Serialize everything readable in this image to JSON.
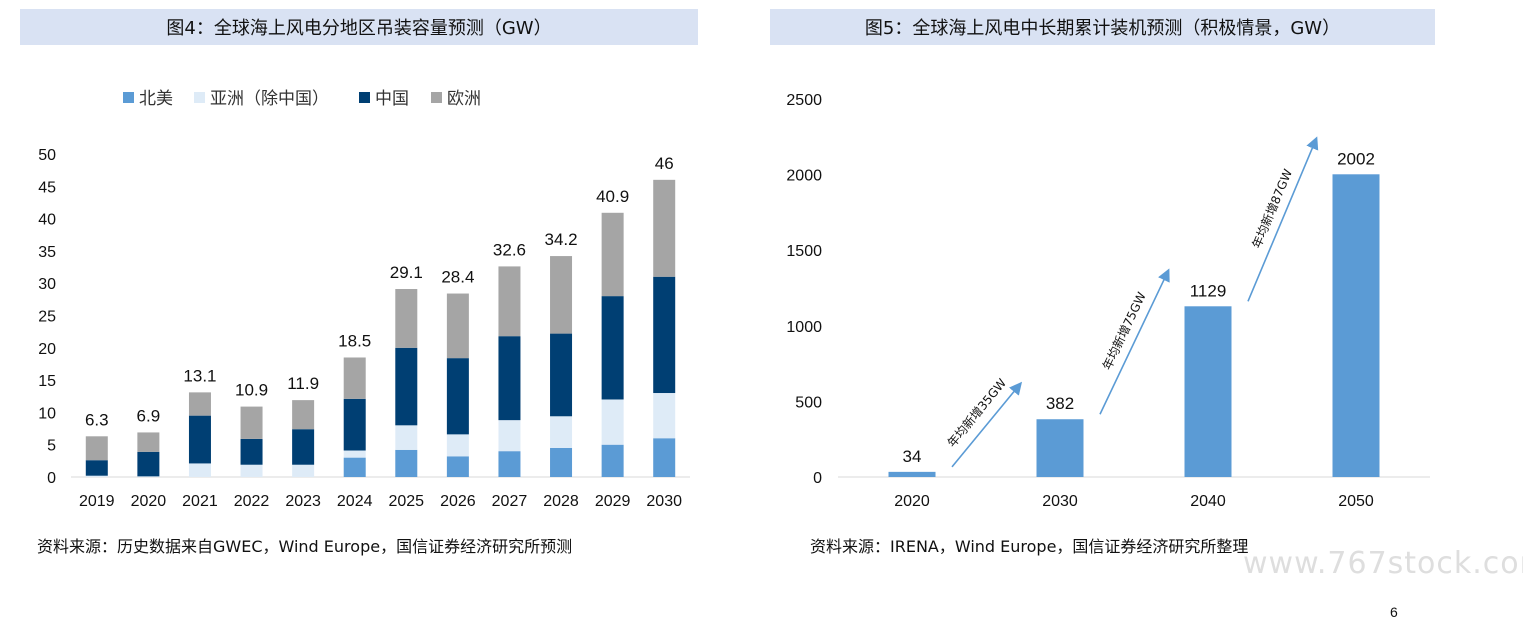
{
  "left_chart": {
    "title": "图4：全球海上风电分地区吊装容量预测（GW）",
    "source": "资料来源：历史数据来自GWEC，Wind Europe，国信证券经济研究所预测",
    "chart_data": {
      "type": "bar",
      "stacked": true,
      "title": "图4：全球海上风电分地区吊装容量预测（GW）",
      "categories": [
        "2019",
        "2020",
        "2021",
        "2022",
        "2023",
        "2024",
        "2025",
        "2026",
        "2027",
        "2028",
        "2029",
        "2030"
      ],
      "series": [
        {
          "name": "北美",
          "color": "#5b9bd5",
          "values": [
            0,
            0,
            0,
            0,
            0,
            3.0,
            4.2,
            3.2,
            4.0,
            4.5,
            5.0,
            6.0
          ]
        },
        {
          "name": "亚洲（除中国）",
          "color": "#deebf7",
          "values": [
            0.2,
            0.1,
            2.1,
            1.9,
            1.9,
            1.1,
            3.8,
            3.4,
            4.8,
            4.9,
            7.0,
            7.0
          ]
        },
        {
          "name": "中国",
          "color": "#003f73",
          "values": [
            2.4,
            3.8,
            7.4,
            4.0,
            5.5,
            8.0,
            12.0,
            11.8,
            13.0,
            12.8,
            16.0,
            18.0
          ]
        },
        {
          "name": "欧洲",
          "color": "#a5a5a5",
          "values": [
            3.7,
            3.0,
            3.6,
            5.0,
            4.5,
            6.4,
            9.1,
            10.0,
            10.8,
            12.0,
            12.9,
            15.0
          ]
        }
      ],
      "totals": [
        "6.3",
        "6.9",
        "13.1",
        "10.9",
        "11.9",
        "18.5",
        "29.1",
        "28.4",
        "32.6",
        "34.2",
        "40.9",
        "46"
      ],
      "ylim": [
        0,
        50
      ],
      "yticks": [
        0,
        5,
        10,
        15,
        20,
        25,
        30,
        35,
        40,
        45,
        50
      ],
      "legend_position": "top",
      "grid": false
    }
  },
  "right_chart": {
    "title": "图5：全球海上风电中长期累计装机预测（积极情景，GW）",
    "source": "资料来源：IRENA，Wind Europe，国信证券经济研究所整理",
    "chart_data": {
      "type": "bar",
      "title": "图5：全球海上风电中长期累计装机预测（积极情景，GW）",
      "categories": [
        "2020",
        "2030",
        "2040",
        "2050"
      ],
      "values": [
        34,
        382,
        1129,
        2002
      ],
      "color": "#5b9bd5",
      "ylim": [
        0,
        2500
      ],
      "yticks": [
        0,
        500,
        1000,
        1500,
        2000,
        2500
      ],
      "annotations": [
        "年均新增35GW",
        "年均新增75GW",
        "年均新增87GW"
      ],
      "grid": false
    }
  },
  "watermark": "www.767stock.com",
  "page_number": "6"
}
